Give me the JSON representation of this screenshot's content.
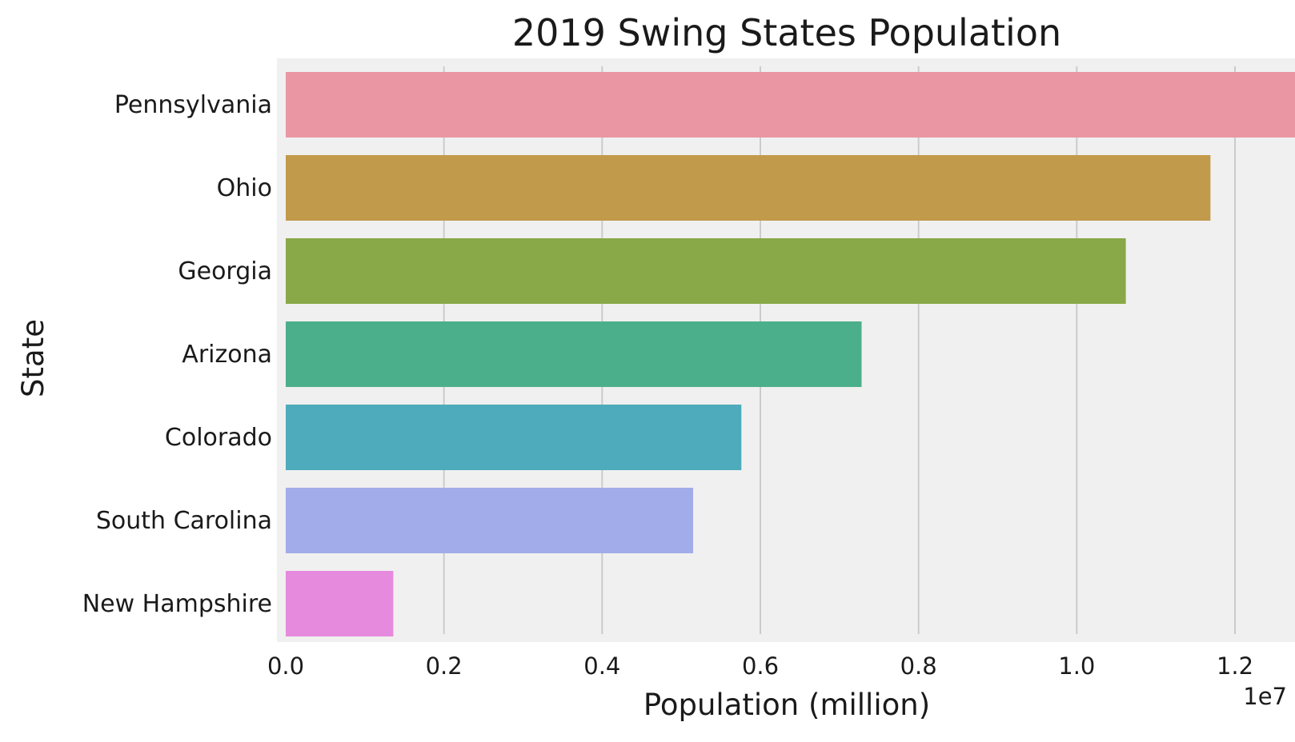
{
  "chart_data": {
    "type": "bar",
    "orientation": "horizontal",
    "title": "2019 Swing States Population",
    "xlabel": "Population (million)",
    "ylabel": "State",
    "x_offset_label": "1e7",
    "xlim": [
      0,
      13500000
    ],
    "xticks": [
      0,
      2000000,
      4000000,
      6000000,
      8000000,
      10000000,
      12000000
    ],
    "xtick_labels": [
      "0.0",
      "0.2",
      "0.4",
      "0.6",
      "0.8",
      "1.0",
      "1.2"
    ],
    "grid": true,
    "plot_background": "#f0f0f0",
    "grid_color": "#cbcbcb",
    "categories": [
      "Pennsylvania",
      "Ohio",
      "Georgia",
      "Arizona",
      "Colorado",
      "South Carolina",
      "New Hampshire"
    ],
    "values": [
      12800000,
      11690000,
      10620000,
      7280000,
      5760000,
      5150000,
      1360000
    ],
    "colors": [
      "#ea96a3",
      "#c29a4b",
      "#89a847",
      "#4caf8c",
      "#4eabbb",
      "#a2acea",
      "#e68ade"
    ]
  }
}
